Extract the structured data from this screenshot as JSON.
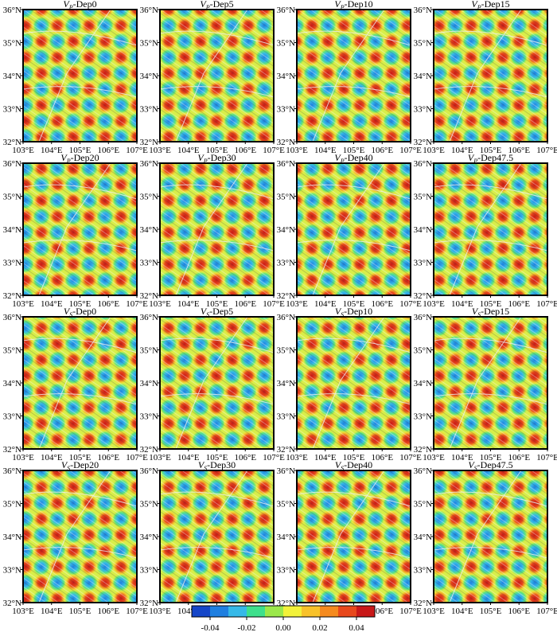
{
  "panels": [
    {
      "title": {
        "symbol": "V",
        "subscript": "P",
        "depth": "-Dep0"
      }
    },
    {
      "title": {
        "symbol": "V",
        "subscript": "P",
        "depth": "-Dep5"
      }
    },
    {
      "title": {
        "symbol": "V",
        "subscript": "P",
        "depth": "-Dep10"
      }
    },
    {
      "title": {
        "symbol": "V",
        "subscript": "P",
        "depth": "-Dep15"
      }
    },
    {
      "title": {
        "symbol": "V",
        "subscript": "P",
        "depth": "-Dep20"
      }
    },
    {
      "title": {
        "symbol": "V",
        "subscript": "P",
        "depth": "-Dep30"
      }
    },
    {
      "title": {
        "symbol": "V",
        "subscript": "P",
        "depth": "-Dep40"
      }
    },
    {
      "title": {
        "symbol": "V",
        "subscript": "P",
        "depth": "-Dep47.5"
      }
    },
    {
      "title": {
        "symbol": "V",
        "subscript": "S",
        "depth": "-Dep0"
      }
    },
    {
      "title": {
        "symbol": "V",
        "subscript": "S",
        "depth": "-Dep5"
      }
    },
    {
      "title": {
        "symbol": "V",
        "subscript": "S",
        "depth": "-Dep10"
      }
    },
    {
      "title": {
        "symbol": "V",
        "subscript": "S",
        "depth": "-Dep15"
      }
    },
    {
      "title": {
        "symbol": "V",
        "subscript": "S",
        "depth": "-Dep20"
      }
    },
    {
      "title": {
        "symbol": "V",
        "subscript": "S",
        "depth": "-Dep30"
      }
    },
    {
      "title": {
        "symbol": "V",
        "subscript": "S",
        "depth": "-Dep40"
      }
    },
    {
      "title": {
        "symbol": "V",
        "subscript": "S",
        "depth": "-Dep47.5"
      }
    }
  ],
  "axes": {
    "xlim": [
      103,
      107
    ],
    "ylim": [
      32,
      36
    ],
    "xticks": [
      {
        "value": 103,
        "label": "103°E"
      },
      {
        "value": 104,
        "label": "104°E"
      },
      {
        "value": 105,
        "label": "105°E"
      },
      {
        "value": 106,
        "label": "106°E"
      },
      {
        "value": 107,
        "label": "107°E"
      }
    ],
    "yticks": [
      {
        "value": 32,
        "label": "32°N"
      },
      {
        "value": 33,
        "label": "33°N"
      },
      {
        "value": 34,
        "label": "34°N"
      },
      {
        "value": 35,
        "label": "35°N"
      },
      {
        "value": 36,
        "label": "36°N"
      }
    ]
  },
  "colorbar": {
    "colors": [
      "#1546c8",
      "#1f7fe0",
      "#36b9e8",
      "#3ee08c",
      "#9be84a",
      "#f2f23a",
      "#f8c22a",
      "#f58a1e",
      "#e8481c",
      "#c81818"
    ],
    "lim": [
      -0.05,
      0.05
    ],
    "ticks": [
      -0.04,
      -0.02,
      {
        "value": 0,
        "label": "0.00"
      },
      0.02,
      0.04
    ]
  }
}
